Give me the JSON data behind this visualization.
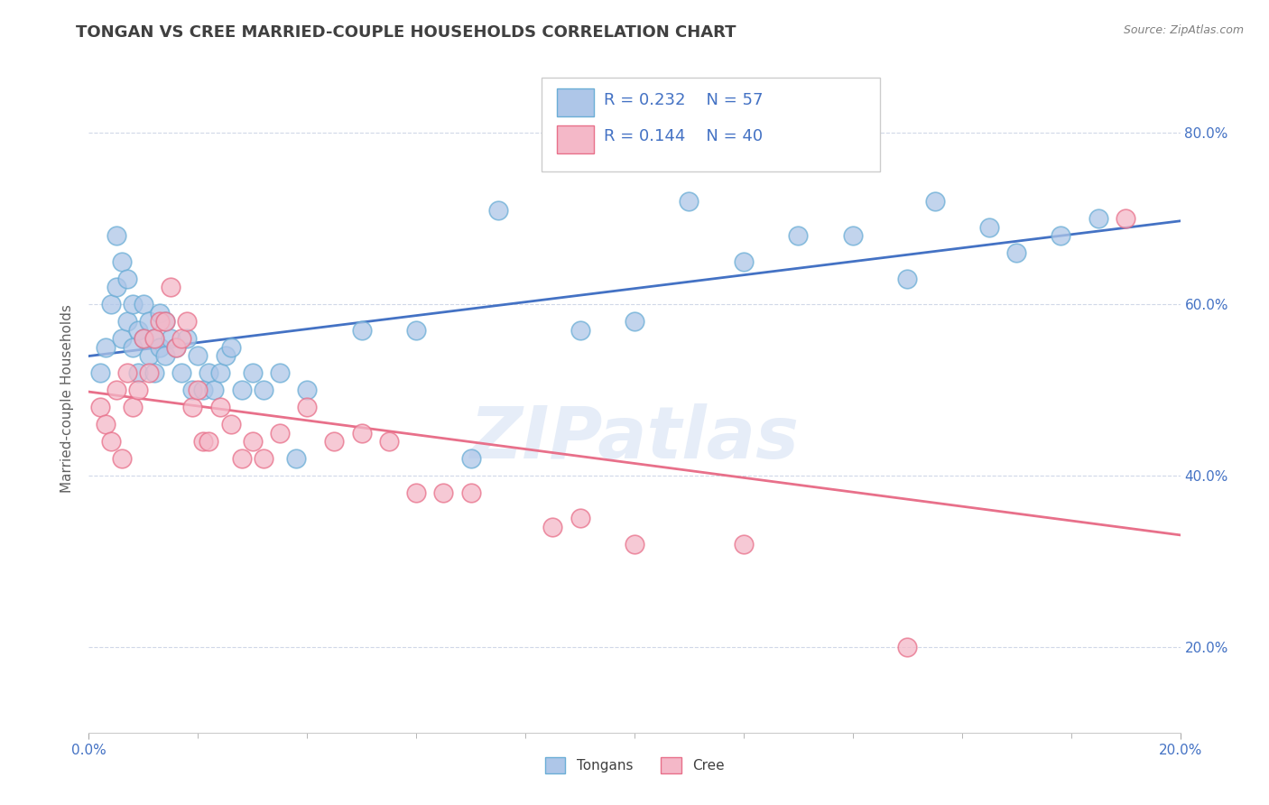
{
  "title": "TONGAN VS CREE MARRIED-COUPLE HOUSEHOLDS CORRELATION CHART",
  "source": "Source: ZipAtlas.com",
  "ylabel": "Married-couple Households",
  "yaxis_labels": [
    "20.0%",
    "40.0%",
    "60.0%",
    "80.0%"
  ],
  "yaxis_values": [
    0.2,
    0.4,
    0.6,
    0.8
  ],
  "xlim": [
    0.0,
    0.2
  ],
  "ylim": [
    0.1,
    0.88
  ],
  "tongan_R": 0.232,
  "tongan_N": 57,
  "cree_R": 0.144,
  "cree_N": 40,
  "tongan_color": "#aec6e8",
  "cree_color": "#f4b8c8",
  "tongan_edge_color": "#6baed6",
  "cree_edge_color": "#e8708a",
  "tongan_line_color": "#4472c4",
  "cree_line_color": "#e8708a",
  "legend_text_color": "#4472c4",
  "title_color": "#404040",
  "axis_label_color": "#4472c4",
  "grid_color": "#d0d8e8",
  "background_color": "#ffffff",
  "watermark": "ZIPatlas",
  "tongan_x": [
    0.002,
    0.003,
    0.004,
    0.005,
    0.005,
    0.006,
    0.006,
    0.007,
    0.007,
    0.008,
    0.008,
    0.009,
    0.009,
    0.01,
    0.01,
    0.011,
    0.011,
    0.012,
    0.012,
    0.013,
    0.013,
    0.014,
    0.014,
    0.015,
    0.016,
    0.017,
    0.018,
    0.019,
    0.02,
    0.021,
    0.022,
    0.023,
    0.024,
    0.025,
    0.026,
    0.028,
    0.03,
    0.032,
    0.035,
    0.038,
    0.04,
    0.05,
    0.06,
    0.07,
    0.075,
    0.09,
    0.1,
    0.11,
    0.12,
    0.13,
    0.14,
    0.15,
    0.155,
    0.165,
    0.17,
    0.178,
    0.185
  ],
  "tongan_y": [
    0.52,
    0.55,
    0.6,
    0.62,
    0.68,
    0.56,
    0.65,
    0.58,
    0.63,
    0.55,
    0.6,
    0.52,
    0.57,
    0.56,
    0.6,
    0.54,
    0.58,
    0.52,
    0.56,
    0.55,
    0.59,
    0.54,
    0.58,
    0.56,
    0.55,
    0.52,
    0.56,
    0.5,
    0.54,
    0.5,
    0.52,
    0.5,
    0.52,
    0.54,
    0.55,
    0.5,
    0.52,
    0.5,
    0.52,
    0.42,
    0.5,
    0.57,
    0.57,
    0.42,
    0.71,
    0.57,
    0.58,
    0.72,
    0.65,
    0.68,
    0.68,
    0.63,
    0.72,
    0.69,
    0.66,
    0.68,
    0.7
  ],
  "cree_x": [
    0.002,
    0.003,
    0.004,
    0.005,
    0.006,
    0.007,
    0.008,
    0.009,
    0.01,
    0.011,
    0.012,
    0.013,
    0.014,
    0.015,
    0.016,
    0.017,
    0.018,
    0.019,
    0.02,
    0.021,
    0.022,
    0.024,
    0.026,
    0.028,
    0.03,
    0.032,
    0.035,
    0.04,
    0.045,
    0.05,
    0.055,
    0.06,
    0.065,
    0.07,
    0.085,
    0.09,
    0.1,
    0.12,
    0.15,
    0.19
  ],
  "cree_y": [
    0.48,
    0.46,
    0.44,
    0.5,
    0.42,
    0.52,
    0.48,
    0.5,
    0.56,
    0.52,
    0.56,
    0.58,
    0.58,
    0.62,
    0.55,
    0.56,
    0.58,
    0.48,
    0.5,
    0.44,
    0.44,
    0.48,
    0.46,
    0.42,
    0.44,
    0.42,
    0.45,
    0.48,
    0.44,
    0.45,
    0.44,
    0.38,
    0.38,
    0.38,
    0.34,
    0.35,
    0.32,
    0.32,
    0.2,
    0.7
  ]
}
